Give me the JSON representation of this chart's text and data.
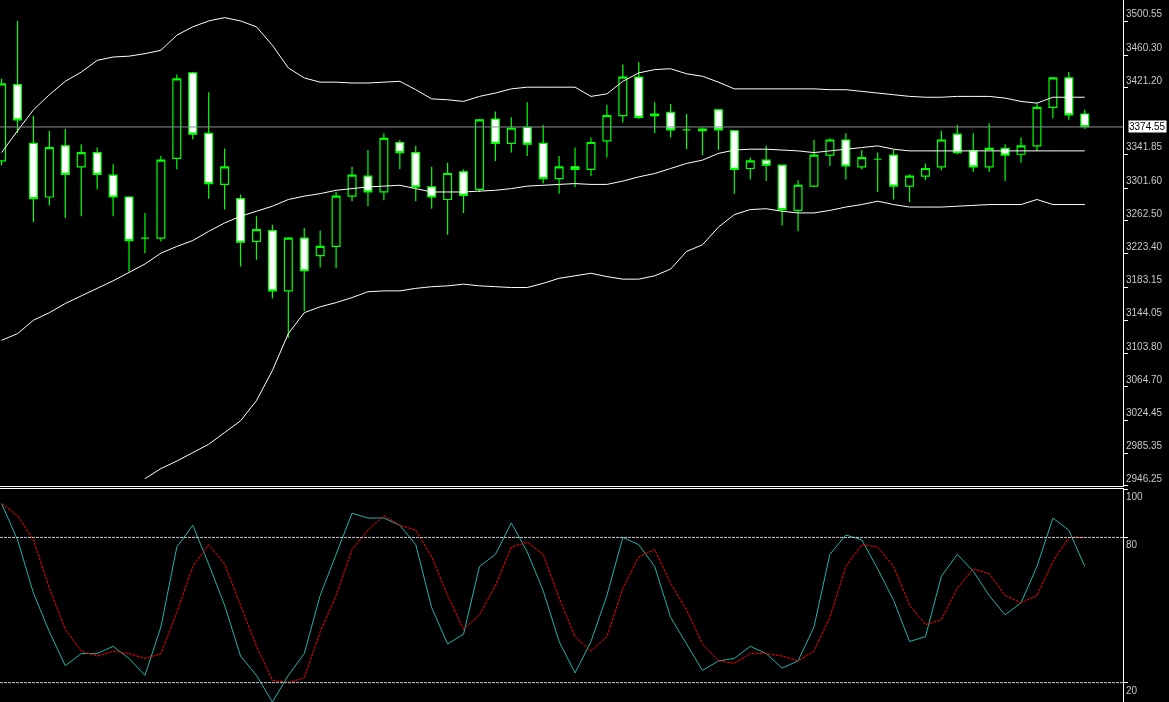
{
  "chart_data": [
    {
      "type": "candlestick",
      "categories": [
        null,
        null,
        null,
        null,
        null,
        null,
        null,
        null,
        null,
        null,
        null,
        null,
        null,
        null,
        null,
        null,
        null,
        null,
        null,
        null,
        null,
        null,
        null,
        null,
        null,
        null,
        null,
        null,
        null,
        null,
        null,
        null,
        null,
        null,
        null,
        null,
        null,
        null,
        null,
        null,
        null,
        null,
        null,
        null,
        null,
        null,
        null,
        null,
        null,
        null,
        null,
        null,
        null,
        null,
        null,
        null,
        null,
        null,
        null,
        null,
        null,
        null,
        null,
        null,
        null,
        null,
        null,
        null,
        null
      ],
      "ohlc": [
        [
          3334,
          3432,
          3329,
          3426
        ],
        [
          3425,
          3501,
          3367,
          3383
        ],
        [
          3355,
          3388,
          3261,
          3289
        ],
        [
          3291,
          3370,
          3281,
          3350
        ],
        [
          3352,
          3372,
          3266,
          3318
        ],
        [
          3327,
          3354,
          3268,
          3344
        ],
        [
          3344,
          3350,
          3300,
          3318
        ],
        [
          3317,
          3330,
          3268,
          3291
        ],
        [
          3291,
          3292,
          3202,
          3239
        ],
        [
          3242,
          3272,
          3224,
          3242
        ],
        [
          3242,
          3340,
          3238,
          3335
        ],
        [
          3337,
          3437,
          3324,
          3432
        ],
        [
          3439,
          3440,
          3360,
          3366
        ],
        [
          3367,
          3416,
          3289,
          3307
        ],
        [
          3306,
          3349,
          3276,
          3327
        ],
        [
          3289,
          3294,
          3208,
          3237
        ],
        [
          3238,
          3268,
          3216,
          3252
        ],
        [
          3251,
          3258,
          3170,
          3179
        ],
        [
          3179,
          3243,
          3123,
          3242
        ],
        [
          3242,
          3254,
          3155,
          3203
        ],
        [
          3221,
          3251,
          3207,
          3232
        ],
        [
          3232,
          3297,
          3206,
          3292
        ],
        [
          3292,
          3327,
          3286,
          3317
        ],
        [
          3316,
          3347,
          3280,
          3297
        ],
        [
          3297,
          3367,
          3287,
          3361
        ],
        [
          3356,
          3359,
          3324,
          3344
        ],
        [
          3344,
          3352,
          3286,
          3303
        ],
        [
          3303,
          3327,
          3277,
          3291
        ],
        [
          3288,
          3332,
          3246,
          3319
        ],
        [
          3321,
          3324,
          3272,
          3293
        ],
        [
          3300,
          3384,
          3297,
          3383
        ],
        [
          3384,
          3393,
          3334,
          3355
        ],
        [
          3355,
          3386,
          3344,
          3373
        ],
        [
          3374,
          3404,
          3340,
          3354
        ],
        [
          3355,
          3377,
          3307,
          3313
        ],
        [
          3313,
          3340,
          3295,
          3327
        ],
        [
          3327,
          3350,
          3303,
          3324
        ],
        [
          3324,
          3362,
          3316,
          3356
        ],
        [
          3358,
          3401,
          3338,
          3388
        ],
        [
          3388,
          3449,
          3380,
          3434
        ],
        [
          3434,
          3452,
          3384,
          3386
        ],
        [
          3390,
          3404,
          3367,
          3388
        ],
        [
          3392,
          3402,
          3362,
          3371
        ],
        [
          3371,
          3390,
          3348,
          3371
        ],
        [
          3372,
          3374,
          3341,
          3370
        ],
        [
          3395,
          3396,
          3347,
          3371
        ],
        [
          3370,
          3371,
          3295,
          3324
        ],
        [
          3325,
          3338,
          3312,
          3334
        ],
        [
          3335,
          3352,
          3310,
          3329
        ],
        [
          3329,
          3329,
          3257,
          3276
        ],
        [
          3275,
          3311,
          3250,
          3305
        ],
        [
          3304,
          3359,
          3303,
          3341
        ],
        [
          3341,
          3361,
          3328,
          3359
        ],
        [
          3359,
          3367,
          3312,
          3328
        ],
        [
          3327,
          3347,
          3324,
          3338
        ],
        [
          3336,
          3344,
          3297,
          3336
        ],
        [
          3341,
          3347,
          3288,
          3304
        ],
        [
          3304,
          3318,
          3285,
          3316
        ],
        [
          3316,
          3331,
          3311,
          3325
        ],
        [
          3327,
          3370,
          3323,
          3359
        ],
        [
          3366,
          3377,
          3342,
          3344
        ],
        [
          3346,
          3367,
          3321,
          3327
        ],
        [
          3327,
          3379,
          3321,
          3349
        ],
        [
          3349,
          3354,
          3310,
          3341
        ],
        [
          3342,
          3362,
          3332,
          3352
        ],
        [
          3352,
          3403,
          3346,
          3398
        ],
        [
          3398,
          3434,
          3385,
          3433
        ],
        [
          3433,
          3440,
          3383,
          3389
        ],
        [
          3390,
          3395,
          3372,
          3375
        ]
      ],
      "series": [
        {
          "type": "line",
          "color": "#ffffff",
          "values": [
            3344,
            3370,
            3395,
            3413,
            3429,
            3440,
            3454,
            3458,
            3459,
            3462,
            3466,
            3484,
            3494,
            3501,
            3505,
            3501,
            3494,
            3472,
            3445,
            3433,
            3428,
            3428,
            3427,
            3427,
            3428,
            3429,
            3419,
            3408,
            3407,
            3405,
            3411,
            3415,
            3420,
            3422,
            3422,
            3422,
            3422,
            3411,
            3414,
            3429,
            3439,
            3443,
            3444,
            3438,
            3435,
            3428,
            3420,
            3420,
            3420,
            3420,
            3420,
            3420,
            3419,
            3419,
            3417,
            3415,
            3413,
            3411,
            3410,
            3410,
            3411,
            3411,
            3411,
            3409,
            3405,
            3403,
            3410,
            3410,
            3410
          ]
        },
        {
          "type": "line",
          "color": "#ffffff",
          "values": [
            3120,
            3128,
            3144,
            3153,
            3164,
            3173,
            3182,
            3191,
            3201,
            3211,
            3224,
            3232,
            3239,
            3250,
            3260,
            3268,
            3274,
            3280,
            3288,
            3292,
            3295,
            3299,
            3301,
            3303,
            3304,
            3305,
            3301,
            3297,
            3297,
            3297,
            3298,
            3299,
            3301,
            3304,
            3305,
            3306,
            3307,
            3306,
            3306,
            3310,
            3315,
            3319,
            3325,
            3331,
            3335,
            3343,
            3347,
            3348,
            3348,
            3347,
            3346,
            3344,
            3346,
            3348,
            3350,
            3352,
            3348,
            3346,
            3346,
            3346,
            3346,
            3346,
            3346,
            3346,
            3346,
            3346,
            3346,
            3346,
            3346
          ]
        },
        {
          "type": "line",
          "color": "#ffffff",
          "values": [
            null,
            null,
            null,
            null,
            null,
            null,
            null,
            null,
            null,
            2955,
            2967,
            2976,
            2986,
            2996,
            3010,
            3024,
            3048,
            3084,
            3128,
            3153,
            3160,
            3165,
            3171,
            3178,
            3179,
            3179,
            3182,
            3184,
            3185,
            3187,
            3185,
            3184,
            3183,
            3183,
            3188,
            3194,
            3197,
            3200,
            3196,
            3193,
            3193,
            3197,
            3205,
            3226,
            3234,
            3255,
            3270,
            3276,
            3277,
            3274,
            3272,
            3272,
            3275,
            3279,
            3282,
            3286,
            3282,
            3279,
            3279,
            3279,
            3280,
            3281,
            3282,
            3282,
            3282,
            3288,
            3282,
            3282,
            3282
          ]
        }
      ],
      "ylim": [
        2946.25,
        3526
      ],
      "yticks": [
        3500.55,
        {
          "value": 3460.3,
          "label": "3460.30"
        },
        {
          "value": 3421.2,
          "label": "3421.20"
        },
        3341.85,
        {
          "value": 3301.6,
          "label": "3301.60"
        },
        {
          "value": 3262.5,
          "label": "3262.50"
        },
        {
          "value": 3223.4,
          "label": "3223.40"
        },
        3183.15,
        3144.05,
        {
          "value": 3103.8,
          "label": "3103.80"
        },
        {
          "value": 3064.7,
          "label": "3064.70"
        },
        3024.45,
        2985.35,
        2946.25
      ],
      "ref_lines": [
        {
          "axis": "y",
          "value": 3374.55,
          "label": "3374.55",
          "color": "#8a8f99",
          "line_style": "solid"
        }
      ],
      "tick_labels": "y",
      "grid": false
    },
    {
      "type": "line",
      "categories": [
        null,
        null,
        null,
        null,
        null,
        null,
        null,
        null,
        null,
        null,
        null,
        null,
        null,
        null,
        null,
        null,
        null,
        null,
        null,
        null,
        null,
        null,
        null,
        null,
        null,
        null,
        null,
        null,
        null,
        null,
        null,
        null,
        null,
        null,
        null,
        null,
        null,
        null,
        null,
        null,
        null,
        null,
        null,
        null,
        null,
        null,
        null,
        null,
        null,
        null,
        null,
        null,
        null,
        null,
        null,
        null,
        null,
        null,
        null,
        null,
        null,
        null,
        null,
        null,
        null,
        null,
        null,
        null,
        null
      ],
      "series": [
        {
          "color": "#20b2aa",
          "line_style": "solid",
          "values": [
            94,
            79,
            57,
            41,
            27,
            32,
            32,
            35,
            30,
            23,
            43,
            76,
            85,
            69,
            52,
            31,
            23,
            12,
            23,
            32,
            56,
            73,
            90,
            88,
            88,
            85,
            77,
            51,
            36,
            40,
            68,
            73,
            86,
            74,
            58,
            37,
            24,
            37,
            56,
            80,
            77,
            68,
            47,
            36,
            25,
            29,
            30,
            35,
            32,
            26,
            29,
            43,
            73,
            81,
            79,
            67,
            54,
            37,
            39,
            64,
            73,
            66,
            56,
            48,
            53,
            68,
            88,
            83,
            68
          ]
        },
        {
          "color": "#ff0000",
          "line_style": "dashed",
          "values": [
            94,
            89,
            79,
            59,
            42,
            33,
            31,
            33,
            32,
            30,
            32,
            49,
            68,
            77,
            69,
            52,
            35,
            21,
            20,
            22,
            41,
            56,
            75,
            83,
            89,
            85,
            83,
            72,
            56,
            42,
            48,
            60,
            76,
            78,
            73,
            55,
            39,
            33,
            39,
            59,
            72,
            75,
            61,
            50,
            36,
            29,
            28,
            32,
            32,
            31,
            29,
            33,
            47,
            68,
            77,
            76,
            68,
            52,
            44,
            46,
            59,
            67,
            65,
            56,
            53,
            56,
            70,
            80,
            80
          ]
        }
      ],
      "ylim": [
        12,
        100
      ],
      "yticks": [
        100,
        80,
        20
      ],
      "ref_lines": [
        {
          "axis": "y",
          "value": 80,
          "color": "#c8c8c8",
          "line_style": "dashed"
        },
        {
          "axis": "y",
          "value": 20,
          "color": "#c8c8c8",
          "line_style": "dashed"
        }
      ],
      "tick_labels": "y",
      "grid": false
    }
  ]
}
